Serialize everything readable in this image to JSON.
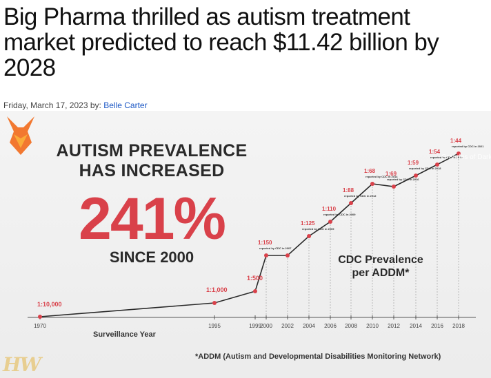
{
  "article": {
    "headline": "Big Pharma thrilled as autism treatment market predicted to reach $11.42 billion by 2028",
    "date": "Friday, March 17, 2023",
    "by_label": "by:",
    "author": "Belle Carter"
  },
  "infographic": {
    "heading_line1": "AUTISM PREVALENCE",
    "heading_line2": "HAS INCREASED",
    "big_number": "241%",
    "since": "SINCE 2000",
    "series_label_line1": "CDC Prevalence",
    "series_label_line2": "per ADDM*",
    "xlabel": "Surveillance Year",
    "footnote": "*ADDM (Autism and Developmental Disabilities Monitoring Network)",
    "logo_text": "HW",
    "watermark_text": "Grandes of Dark Fire",
    "colors": {
      "accent_red": "#d9414a",
      "line": "#2a2a2a",
      "fox_orange": "#f26a1b"
    }
  },
  "chart_data": {
    "type": "line",
    "title": "AUTISM PREVALENCE HAS INCREASED 241% SINCE 2000",
    "xlabel": "Surveillance Year",
    "ylabel": "",
    "x_ticks": [
      "1970",
      "1995",
      "1999",
      "2000",
      "2002",
      "2004",
      "2006",
      "2008",
      "2010",
      "2012",
      "2014",
      "2016",
      "2018"
    ],
    "series": [
      {
        "name": "CDC Prevalence per ADDM*",
        "points": [
          {
            "x": 1970,
            "label": "1:10,000",
            "note": ""
          },
          {
            "x": 1995,
            "label": "1:1,000",
            "note": ""
          },
          {
            "x": 1999,
            "label": "1:500",
            "note": ""
          },
          {
            "x": 2000,
            "label": "1:150",
            "note": "reported by CDC in 2007"
          },
          {
            "x": 2002,
            "label": "",
            "note": ""
          },
          {
            "x": 2004,
            "label": "1:125",
            "note": "reported by CDC in 2009"
          },
          {
            "x": 2006,
            "label": "1:110",
            "note": "reported by CDC in 2009"
          },
          {
            "x": 2008,
            "label": "1:88",
            "note": "reported by CDC in 2012"
          },
          {
            "x": 2010,
            "label": "1:68",
            "note": "reported by CDC in 2014"
          },
          {
            "x": 2012,
            "label": "1:69",
            "note": "reported by CDC in 2016"
          },
          {
            "x": 2014,
            "label": "1:59",
            "note": "reported by CDC in 2018"
          },
          {
            "x": 2016,
            "label": "1:54",
            "note": "reported by CDC in 2020"
          },
          {
            "x": 2018,
            "label": "1:44",
            "note": "reported by CDC in 2021"
          }
        ]
      }
    ],
    "grid": false,
    "legend": "none"
  }
}
